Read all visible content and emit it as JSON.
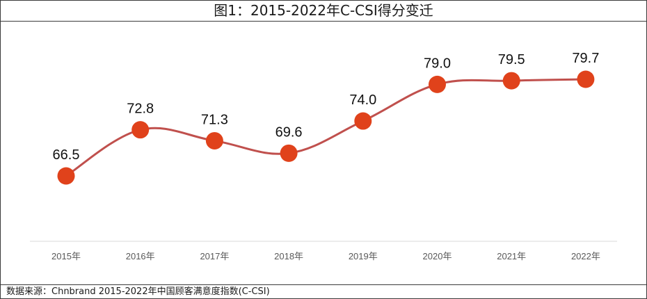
{
  "header": {
    "title": "图1：2015-2022年C-CSI得分变迁"
  },
  "footer": {
    "source": "数据来源：Chnbrand 2015-2022年中国顾客满意度指数(C-CSI)"
  },
  "colors": {
    "line": "#c0504d",
    "marker": "#e0421b",
    "axis": "#d9d9d9"
  },
  "chart_data": {
    "type": "line",
    "title": "图1：2015-2022年C-CSI得分变迁",
    "xlabel": "",
    "ylabel": "",
    "categories": [
      "2015年",
      "2016年",
      "2017年",
      "2018年",
      "2019年",
      "2020年",
      "2021年",
      "2022年"
    ],
    "series": [
      {
        "values": [
          66.5,
          72.8,
          71.3,
          69.6,
          74.0,
          79.0,
          79.5,
          79.7
        ]
      }
    ],
    "data_labels": [
      "66.5",
      "72.8",
      "71.3",
      "69.6",
      "74.0",
      "79.0",
      "79.5",
      "79.7"
    ],
    "grid": false,
    "smooth": true
  }
}
